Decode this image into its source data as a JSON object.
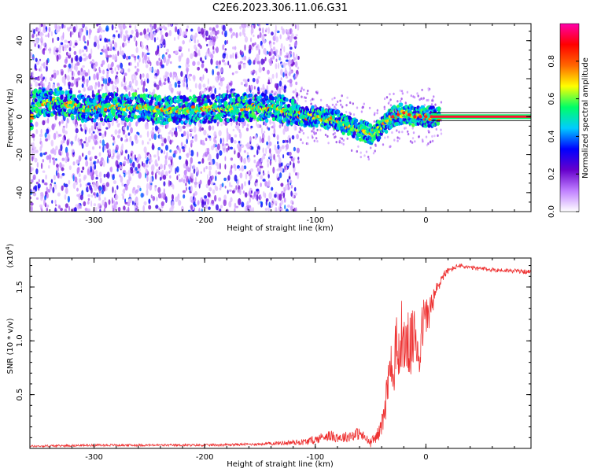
{
  "title": "C2E6.2023.306.11.06.G31",
  "colors": {
    "accent_line": "#d8d8d8",
    "snr_line": "#e33",
    "carrier": "#ff1030"
  },
  "chart_data": [
    {
      "type": "heatmap",
      "xlabel": "Height of straight line (km)",
      "ylabel": "Frequency (Hz)",
      "xlim": [
        -358,
        95
      ],
      "ylim": [
        -50,
        49
      ],
      "xticks": [
        -300,
        -200,
        -100,
        0
      ],
      "yticks": [
        -40,
        -20,
        0,
        20,
        40
      ],
      "colorbar": {
        "label": "Normalized spectral amplitude",
        "range": [
          0.0,
          1.0
        ],
        "ticks": [
          0.0,
          0.2,
          0.4,
          0.6,
          0.8
        ],
        "tick_labels": [
          "0.0",
          "0.2",
          "0.4",
          "0.6",
          "0.8"
        ],
        "colormap": [
          "#ffffff",
          "#c080ff",
          "#6600cc",
          "#0000ff",
          "#00ccff",
          "#00ff66",
          "#ffff00",
          "#ff6600",
          "#ff0000",
          "#ff00aa"
        ]
      },
      "ridge_x": [
        -355,
        -330,
        -310,
        -290,
        -260,
        -230,
        -200,
        -170,
        -150,
        -130,
        -110,
        -100,
        -90,
        -80,
        -70,
        -60,
        -50,
        -45,
        -40,
        -30,
        -20,
        -10,
        0,
        10,
        95
      ],
      "ridge_y": [
        7,
        8,
        4,
        5,
        5,
        3,
        4,
        5,
        5,
        4,
        0,
        0,
        -1,
        -2,
        -5,
        -7,
        -9,
        -8,
        -6,
        0,
        2,
        0,
        0,
        0,
        0
      ]
    },
    {
      "type": "line",
      "xlabel": "Height of straight line (km)",
      "ylabel": "SNR (10 * v/v)",
      "y_multiplier": "(x10⁴)",
      "xlim": [
        -358,
        95
      ],
      "ylim": [
        0,
        1.77
      ],
      "xticks": [
        -300,
        -200,
        -100,
        0
      ],
      "yticks": [
        0.5,
        1.0,
        1.5
      ],
      "ytick_labels": [
        "0.5",
        "1.0",
        "1.5"
      ],
      "series": [
        {
          "x": [
            -358,
            -300,
            -250,
            -200,
            -150,
            -130,
            -110,
            -100,
            -90,
            -75,
            -60,
            -50,
            -42,
            -38,
            -34,
            -30,
            -26,
            -22,
            -18,
            -14,
            -10,
            -6,
            -2,
            2,
            6,
            10,
            15,
            20,
            30,
            40,
            60,
            80,
            95
          ],
          "y": [
            0.02,
            0.03,
            0.03,
            0.03,
            0.04,
            0.05,
            0.06,
            0.08,
            0.12,
            0.1,
            0.14,
            0.05,
            0.15,
            0.3,
            0.6,
            0.75,
            0.95,
            0.9,
            1.0,
            0.95,
            1.05,
            0.9,
            1.2,
            1.25,
            1.35,
            1.48,
            1.6,
            1.65,
            1.7,
            1.68,
            1.66,
            1.65,
            1.64
          ],
          "noise": [
            0.01,
            0.01,
            0.01,
            0.01,
            0.012,
            0.02,
            0.03,
            0.04,
            0.05,
            0.05,
            0.06,
            0.04,
            0.07,
            0.15,
            0.25,
            0.3,
            0.3,
            0.3,
            0.3,
            0.3,
            0.28,
            0.28,
            0.22,
            0.18,
            0.12,
            0.08,
            0.05,
            0.03,
            0.02,
            0.02,
            0.02,
            0.02,
            0.02
          ]
        }
      ]
    }
  ]
}
